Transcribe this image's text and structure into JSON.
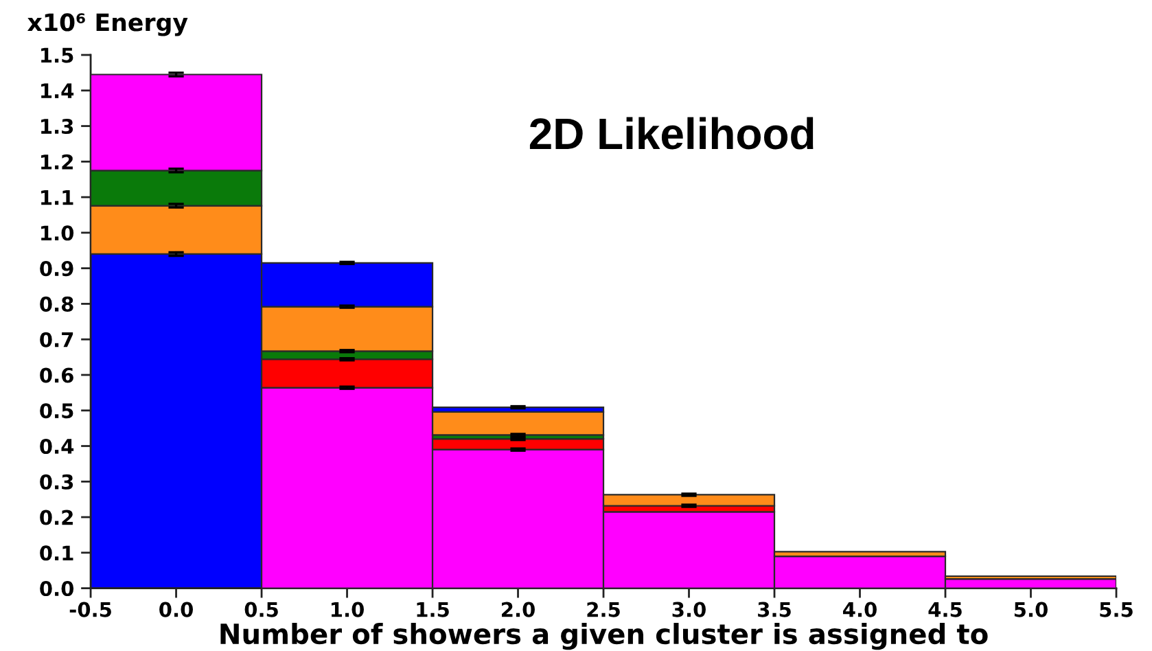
{
  "chart_data": {
    "type": "bar",
    "stacked": true,
    "title": "2D Likelihood",
    "xlabel": "Number of showers a given cluster is assigned to",
    "ylabel": "x10⁶ Energy",
    "x": [
      0,
      1,
      2,
      3,
      4,
      5
    ],
    "series": [
      {
        "color": "#0000ff",
        "values": [
          0.94,
          null,
          null,
          null,
          null,
          null
        ],
        "errors": [
          0.005,
          null,
          null,
          null,
          null,
          null
        ]
      },
      {
        "color": "#ff00ff",
        "values": [
          null,
          0.564,
          0.39,
          0.215,
          0.09,
          0.026
        ],
        "errors": [
          null,
          0.003,
          0.003,
          null,
          null,
          null
        ]
      },
      {
        "color": "#ff0000",
        "values": [
          null,
          0.08,
          0.03,
          0.017,
          null,
          null
        ],
        "errors": [
          null,
          0.003,
          0.003,
          0.003,
          null,
          null
        ]
      },
      {
        "color": "#0a7a0a",
        "values": [
          null,
          0.023,
          0.011,
          null,
          null,
          null
        ],
        "errors": [
          null,
          0.003,
          0.003,
          null,
          null,
          null
        ]
      },
      {
        "color": "#ff8c1a",
        "values": [
          0.136,
          0.125,
          0.065,
          0.031,
          0.013,
          0.008
        ],
        "errors": [
          0.005,
          0.003,
          null,
          0.003,
          null,
          null
        ]
      },
      {
        "color": "#0a7a0a",
        "values": [
          0.099,
          null,
          null,
          null,
          null,
          null
        ],
        "errors": [
          0.005,
          null,
          null,
          null,
          null,
          null
        ]
      },
      {
        "color": "#0000ff",
        "values": [
          null,
          0.123,
          0.013,
          null,
          null,
          null
        ],
        "errors": [
          null,
          0.003,
          0.003,
          null,
          null,
          null
        ]
      },
      {
        "color": "#ff00ff",
        "values": [
          0.27,
          null,
          null,
          null,
          null,
          null
        ],
        "errors": [
          0.005,
          null,
          null,
          null,
          null,
          null
        ]
      }
    ],
    "xlim": [
      -0.5,
      5.5
    ],
    "xticks": [
      -0.5,
      {
        "value": 0,
        "label": "0.0"
      },
      0.5,
      {
        "value": 1,
        "label": "1.0"
      },
      1.5,
      {
        "value": 2,
        "label": "2.0"
      },
      2.5,
      {
        "value": 3,
        "label": "3.0"
      },
      3.5,
      {
        "value": 4,
        "label": "4.0"
      },
      4.5,
      {
        "value": 5,
        "label": "5.0"
      },
      5.5
    ],
    "ylim": [
      0,
      1.5
    ],
    "yticks": [
      {
        "value": 0,
        "label": "0.0"
      },
      0.1,
      0.2,
      0.3,
      0.4,
      0.5,
      0.6,
      0.7,
      0.8,
      0.9,
      {
        "value": 1,
        "label": "1.0"
      },
      1.1,
      1.2,
      1.3,
      1.4,
      1.5
    ],
    "grid": false,
    "legend": false
  }
}
